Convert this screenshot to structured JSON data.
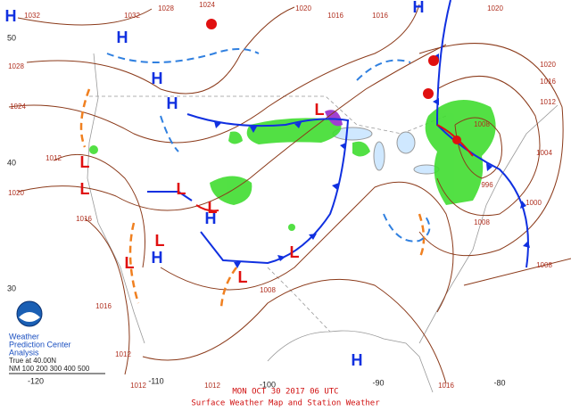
{
  "footer": {
    "valid_time": "MON OCT 30 2017 06 UTC",
    "title": "Surface Weather Map and Station Weather"
  },
  "logo": {
    "line1": "Weather",
    "line2": "Prediction Center",
    "line3": "Analysis",
    "projection": "True at 40.00N",
    "scale": "NM 100 200 300 400 500"
  },
  "latitudes": [
    "50",
    "40",
    "30"
  ],
  "longitudes": [
    "-120",
    "-110",
    "-100",
    "-90",
    "-80"
  ],
  "highs": [
    "H",
    "H",
    "H",
    "H",
    "H",
    "H",
    "H",
    "H"
  ],
  "lows": [
    "L",
    "L",
    "L",
    "L",
    "L",
    "L",
    "L",
    "L",
    "L"
  ],
  "isobar_labels": [
    "1032",
    "1032",
    "1028",
    "1024",
    "1020",
    "1016",
    "1016",
    "1020",
    "1028",
    "1024",
    "1020",
    "1012",
    "1016",
    "1008",
    "1004",
    "1000",
    "996",
    "1008",
    "1012",
    "1016",
    "1020",
    "1016",
    "1012",
    "1012",
    "1008",
    "1008",
    "1016",
    "1012"
  ]
}
